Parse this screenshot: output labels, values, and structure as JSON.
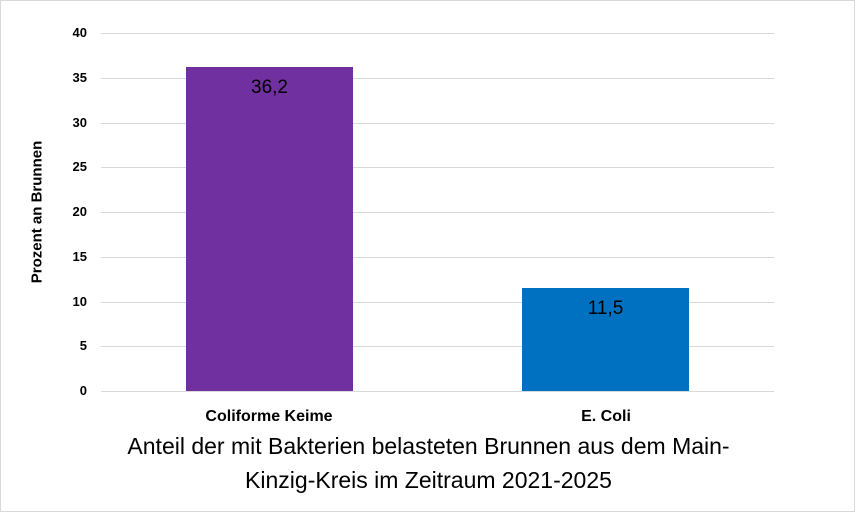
{
  "chart_data": {
    "type": "bar",
    "categories": [
      "Coliforme Keime",
      "E. Coli"
    ],
    "values": [
      36.2,
      11.5
    ],
    "value_labels": [
      "36,2",
      "11,5"
    ],
    "colors": [
      "#7030a0",
      "#0070c0"
    ],
    "title": "Anteil der mit Bakterien belasteten Brunnen aus dem Main-Kinzig-Kreis im Zeitraum 2021-2025",
    "title_lines": [
      "Anteil der mit Bakterien belasteten Brunnen aus dem Main-",
      "Kinzig-Kreis im Zeitraum 2021-2025"
    ],
    "xlabel": "",
    "ylabel": "Prozent an Brunnen",
    "ylim": [
      0,
      40
    ],
    "yticks": [
      "0",
      "5",
      "10",
      "15",
      "20",
      "25",
      "30",
      "35",
      "40"
    ],
    "grid": true,
    "legend": null
  }
}
